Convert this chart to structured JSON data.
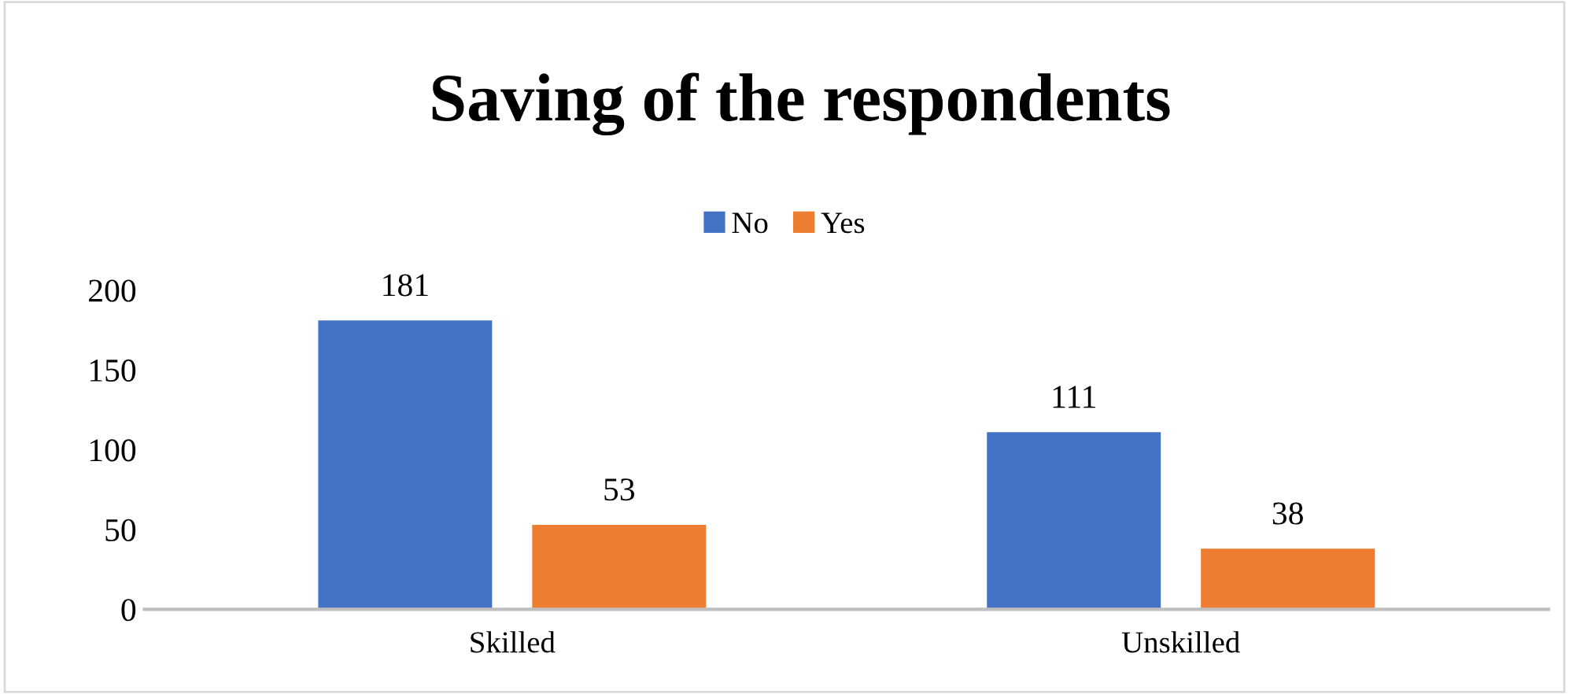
{
  "chart_data": {
    "type": "bar",
    "title": "Saving of the respondents",
    "categories": [
      "Skilled",
      "Unskilled"
    ],
    "series": [
      {
        "name": "No",
        "color": "#4472c4",
        "values": [
          181,
          111
        ]
      },
      {
        "name": "Yes",
        "color": "#ed7d31",
        "values": [
          53,
          38
        ]
      }
    ],
    "ylim": [
      0,
      200
    ],
    "yticks": [
      0,
      50,
      100,
      150,
      200
    ],
    "grid": false,
    "legend": "top",
    "data_labels": true
  }
}
